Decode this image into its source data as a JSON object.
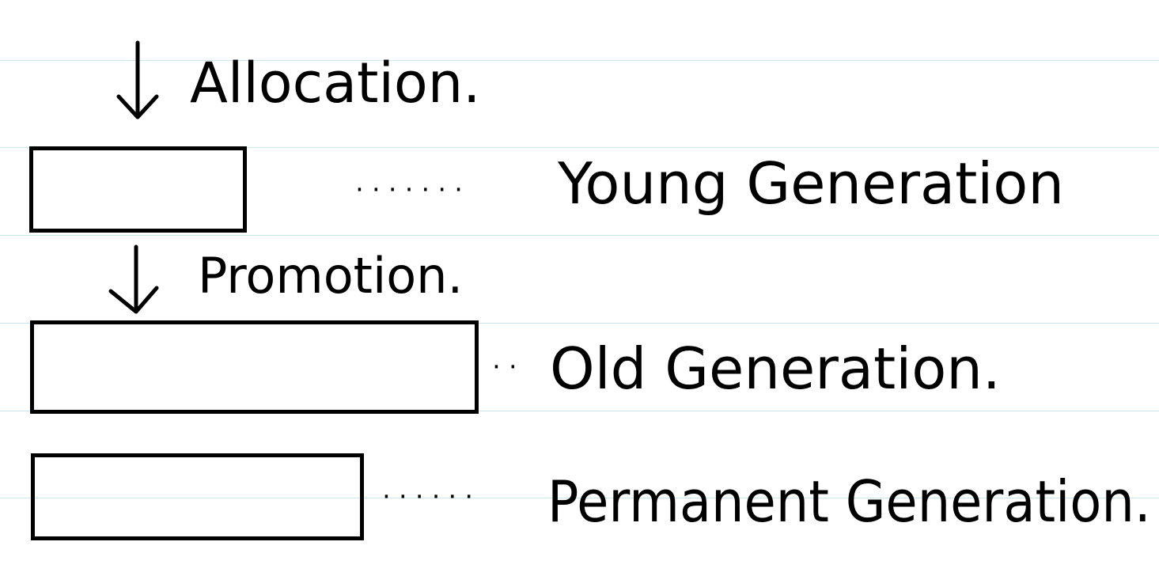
{
  "colors": {
    "ink": "#000000",
    "ruled_line": "#c9e6ef",
    "paper": "#ffffff"
  },
  "diagram": {
    "labels": {
      "allocation": "Allocation.",
      "promotion": "Promotion.",
      "young_generation": "Young Generation",
      "old_generation": "Old Generation.",
      "permanent_generation": "Permanent Generation."
    },
    "leaders": {
      "young": "·······",
      "old": "··",
      "permanent": "······"
    },
    "icons": {
      "allocation_arrow": "arrow-down-icon",
      "promotion_arrow": "arrow-down-icon"
    }
  }
}
